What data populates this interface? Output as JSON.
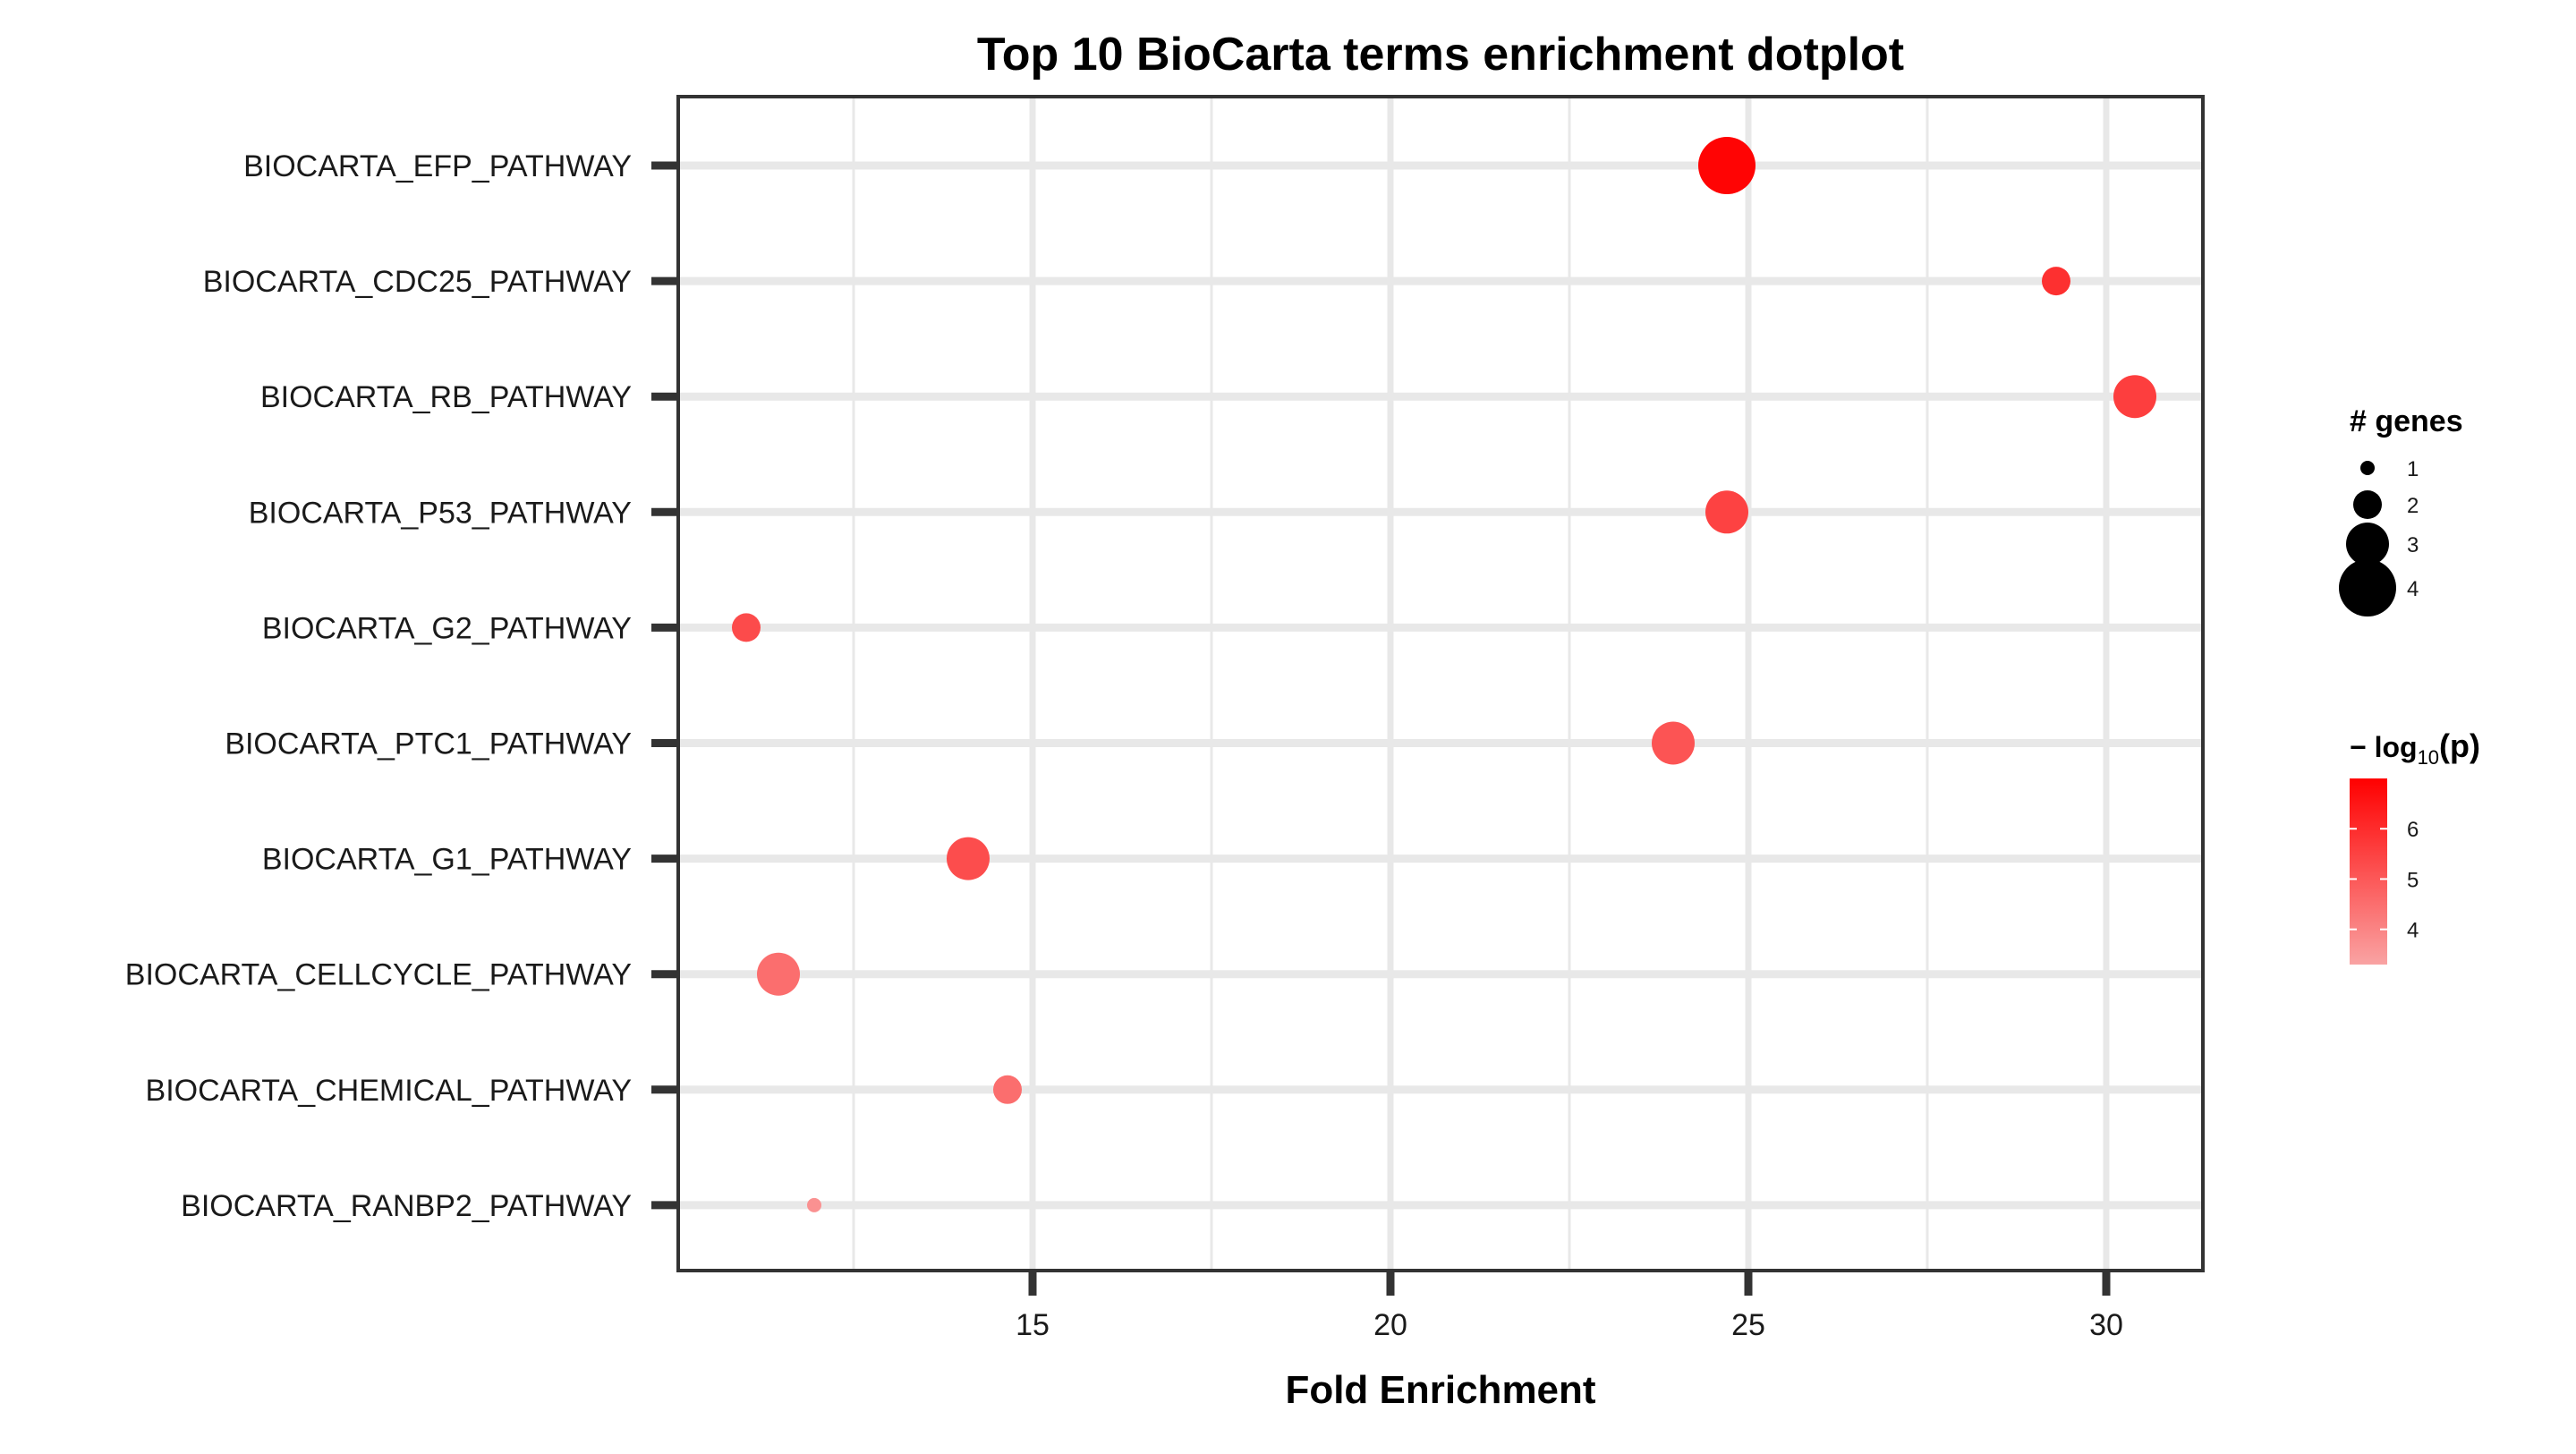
{
  "chart_data": {
    "type": "scatter",
    "title": "Top 10 BioCarta terms enrichment dotplot",
    "xlabel": "Fold Enrichment",
    "ylabel": "",
    "xlim": [
      10.05,
      31.35
    ],
    "xticks": [
      15,
      20,
      25,
      30
    ],
    "x_minor_gridlines": [
      12.5,
      17.5,
      22.5,
      27.5
    ],
    "grid": true,
    "categories": [
      "BIOCARTA_EFP_PATHWAY",
      "BIOCARTA_CDC25_PATHWAY",
      "BIOCARTA_RB_PATHWAY",
      "BIOCARTA_P53_PATHWAY",
      "BIOCARTA_G2_PATHWAY",
      "BIOCARTA_PTC1_PATHWAY",
      "BIOCARTA_G1_PATHWAY",
      "BIOCARTA_CELLCYCLE_PATHWAY",
      "BIOCARTA_CHEMICAL_PATHWAY",
      "BIOCARTA_RANBP2_PATHWAY"
    ],
    "points": [
      {
        "term": "BIOCARTA_EFP_PATHWAY",
        "fold_enrichment": 24.7,
        "genes": 4,
        "neg_log10_p": 6.9
      },
      {
        "term": "BIOCARTA_CDC25_PATHWAY",
        "fold_enrichment": 29.3,
        "genes": 2,
        "neg_log10_p": 5.9
      },
      {
        "term": "BIOCARTA_RB_PATHWAY",
        "fold_enrichment": 30.4,
        "genes": 3,
        "neg_log10_p": 5.6
      },
      {
        "term": "BIOCARTA_P53_PATHWAY",
        "fold_enrichment": 24.7,
        "genes": 3,
        "neg_log10_p": 5.5
      },
      {
        "term": "BIOCARTA_G2_PATHWAY",
        "fold_enrichment": 11.0,
        "genes": 2,
        "neg_log10_p": 5.3
      },
      {
        "term": "BIOCARTA_PTC1_PATHWAY",
        "fold_enrichment": 23.95,
        "genes": 3,
        "neg_log10_p": 5.1
      },
      {
        "term": "BIOCARTA_G1_PATHWAY",
        "fold_enrichment": 14.1,
        "genes": 3,
        "neg_log10_p": 5.25
      },
      {
        "term": "BIOCARTA_CELLCYCLE_PATHWAY",
        "fold_enrichment": 11.45,
        "genes": 3,
        "neg_log10_p": 4.5
      },
      {
        "term": "BIOCARTA_CHEMICAL_PATHWAY",
        "fold_enrichment": 14.65,
        "genes": 2,
        "neg_log10_p": 4.5
      },
      {
        "term": "BIOCARTA_RANBP2_PATHWAY",
        "fold_enrichment": 11.95,
        "genes": 1,
        "neg_log10_p": 3.7
      }
    ],
    "size_legend": {
      "title": "# genes",
      "entries": [
        {
          "label": "1",
          "value": 1
        },
        {
          "label": "2",
          "value": 2
        },
        {
          "label": "3",
          "value": 3
        },
        {
          "label": "4",
          "value": 4
        }
      ]
    },
    "color_legend": {
      "title_prefix": "− log",
      "title_subscript": "10",
      "title_suffix": "(p)",
      "min": 3.3,
      "max": 7.0,
      "ticks": [
        {
          "label": "4",
          "value": 4
        },
        {
          "label": "5",
          "value": 5
        },
        {
          "label": "6",
          "value": 6
        }
      ],
      "color_low": "#f9a3a3",
      "color_high": "#ff0000"
    },
    "legend_position": "right",
    "colors": {
      "gridline": "#e8e8e8",
      "panel_border": "#333333",
      "text": "#000000",
      "tick_label": "#1a1a1a"
    }
  }
}
